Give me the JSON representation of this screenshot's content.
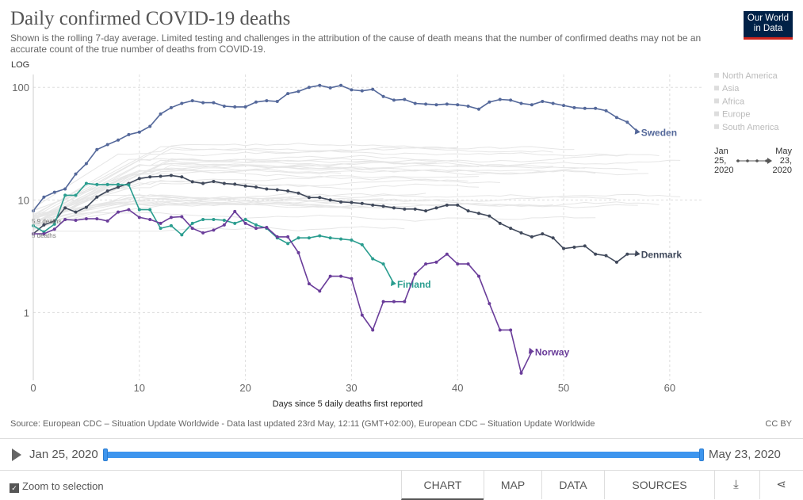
{
  "header": {
    "title": "Daily confirmed COVID-19 deaths",
    "subtitle": "Shown is the rolling 7-day average. Limited testing and challenges in the attribution of the cause of death means that the number of confirmed deaths may not be an accurate count of the true number of deaths from COVID-19.",
    "logo_line1": "Our World",
    "logo_line2": "in Data"
  },
  "chart_data": {
    "type": "line",
    "scale_label": "LOG",
    "xlabel": "Days since 5 daily deaths first reported",
    "ylabel": "",
    "x_ticks": [
      0,
      10,
      20,
      30,
      40,
      50,
      60
    ],
    "y_ticks": [
      1,
      10,
      100
    ],
    "xlim": [
      0,
      63
    ],
    "ylim": [
      0.25,
      130
    ],
    "y_scale": "log",
    "grid": true,
    "start_annotations": [
      "5.9 deaths",
      "5 deaths"
    ],
    "legend": {
      "placement": "right",
      "items": [
        {
          "name": "North America",
          "color": "#dddddd"
        },
        {
          "name": "Asia",
          "color": "#dddddd"
        },
        {
          "name": "Africa",
          "color": "#dddddd"
        },
        {
          "name": "Europe",
          "color": "#dddddd"
        },
        {
          "name": "South America",
          "color": "#dddddd"
        }
      ]
    },
    "time_legend": {
      "start": "Jan 25, 2020",
      "end": "May 23, 2020"
    },
    "series": [
      {
        "name": "Sweden",
        "color": "#54689a",
        "x": [
          0,
          1,
          2,
          3,
          4,
          5,
          6,
          7,
          8,
          9,
          10,
          11,
          12,
          13,
          14,
          15,
          16,
          17,
          18,
          19,
          20,
          21,
          22,
          23,
          24,
          25,
          26,
          27,
          28,
          29,
          30,
          31,
          32,
          33,
          34,
          35,
          36,
          37,
          38,
          39,
          40,
          41,
          42,
          43,
          44,
          45,
          46,
          47,
          48,
          49,
          50,
          51,
          52,
          53,
          54,
          55,
          56,
          57
        ],
        "y": [
          8,
          10.6,
          11.7,
          12.5,
          17,
          21,
          28,
          31,
          34,
          38,
          40,
          45,
          58,
          66,
          72,
          76,
          73,
          73,
          68,
          67,
          67,
          74,
          76,
          75,
          88,
          92,
          100,
          104,
          99,
          104,
          95,
          93,
          96,
          83,
          77,
          78,
          72,
          71,
          70,
          71,
          70,
          68,
          64,
          74,
          78,
          77,
          72,
          70,
          75,
          72,
          69,
          66,
          65,
          65,
          62,
          54,
          49,
          40
        ]
      },
      {
        "name": "Denmark",
        "color": "#40495b",
        "x": [
          0,
          1,
          2,
          3,
          4,
          5,
          6,
          7,
          8,
          9,
          10,
          11,
          12,
          13,
          14,
          15,
          16,
          17,
          18,
          19,
          20,
          21,
          22,
          23,
          24,
          25,
          26,
          27,
          28,
          29,
          30,
          31,
          32,
          33,
          34,
          35,
          36,
          37,
          38,
          39,
          40,
          41,
          42,
          43,
          44,
          45,
          46,
          47,
          48,
          49,
          50,
          51,
          52,
          53,
          54,
          55,
          56,
          57
        ],
        "y": [
          5,
          6,
          6.5,
          8.5,
          7.8,
          8.6,
          10.6,
          12,
          13,
          14,
          15.5,
          16,
          16.2,
          16.5,
          16,
          14.5,
          14,
          14.6,
          14,
          13.8,
          13.3,
          13,
          12.5,
          12.3,
          12,
          11.5,
          10.5,
          10.5,
          10,
          9.6,
          9.5,
          9.3,
          9,
          8.8,
          8.5,
          8.3,
          8.3,
          8,
          8.5,
          9,
          9,
          8,
          7.6,
          7.2,
          6.2,
          5.6,
          5.1,
          4.7,
          5,
          4.6,
          3.7,
          3.8,
          3.9,
          3.3,
          3.2,
          2.8,
          3.3,
          3.3
        ]
      },
      {
        "name": "Finland",
        "color": "#2a9d8f",
        "x": [
          0,
          1,
          2,
          3,
          4,
          5,
          6,
          7,
          8,
          9,
          10,
          11,
          12,
          13,
          14,
          15,
          16,
          17,
          18,
          19,
          20,
          21,
          22,
          23,
          24,
          25,
          26,
          27,
          28,
          29,
          30,
          31,
          32,
          33,
          34
        ],
        "y": [
          5.9,
          5.2,
          6.1,
          11,
          11,
          14,
          13.7,
          13.7,
          13.7,
          13.6,
          8.2,
          8.2,
          5.6,
          5.9,
          4.9,
          6.2,
          6.7,
          6.7,
          6.6,
          6.2,
          6.7,
          6,
          5.6,
          4.6,
          4.1,
          4.6,
          4.6,
          4.8,
          4.6,
          4.5,
          4.4,
          4,
          3,
          2.7,
          1.8
        ]
      },
      {
        "name": "Norway",
        "color": "#6a3d9a",
        "x": [
          0,
          1,
          2,
          3,
          4,
          5,
          6,
          7,
          8,
          9,
          10,
          11,
          12,
          13,
          14,
          15,
          16,
          17,
          18,
          19,
          20,
          21,
          22,
          23,
          24,
          25,
          26,
          27,
          28,
          29,
          30,
          31,
          32,
          33,
          34,
          35,
          36,
          37,
          38,
          39,
          40,
          41,
          42,
          43,
          44,
          45,
          46,
          47
        ],
        "y": [
          5,
          5,
          5.5,
          6.7,
          6.6,
          6.8,
          6.8,
          6.5,
          7.8,
          8.2,
          7,
          6.7,
          6.2,
          7,
          7.1,
          5.6,
          5.1,
          5.4,
          6,
          7.9,
          6.2,
          5.6,
          5.7,
          4.7,
          4.7,
          3.4,
          1.8,
          1.55,
          2.1,
          2.1,
          2,
          0.95,
          0.7,
          1.25,
          1.25,
          1.25,
          2.2,
          2.7,
          2.8,
          3.3,
          2.7,
          2.7,
          2.1,
          1.2,
          0.7,
          0.7,
          0.29,
          0.45
        ]
      }
    ]
  },
  "footer": {
    "source": "Source: European CDC – Situation Update Worldwide - Data last updated 23rd May, 12:11 (GMT+02:00), European CDC – Situation Update Worldwide",
    "license": "CC BY"
  },
  "timeline": {
    "start_label": "Jan 25, 2020",
    "end_label": "May 23, 2020"
  },
  "controls": {
    "zoom_label": "Zoom to selection",
    "zoom_checked": true,
    "tabs": [
      "CHART",
      "MAP",
      "DATA",
      "SOURCES"
    ],
    "active_tab": "CHART",
    "download_icon": "download-icon",
    "share_icon": "share-icon"
  }
}
